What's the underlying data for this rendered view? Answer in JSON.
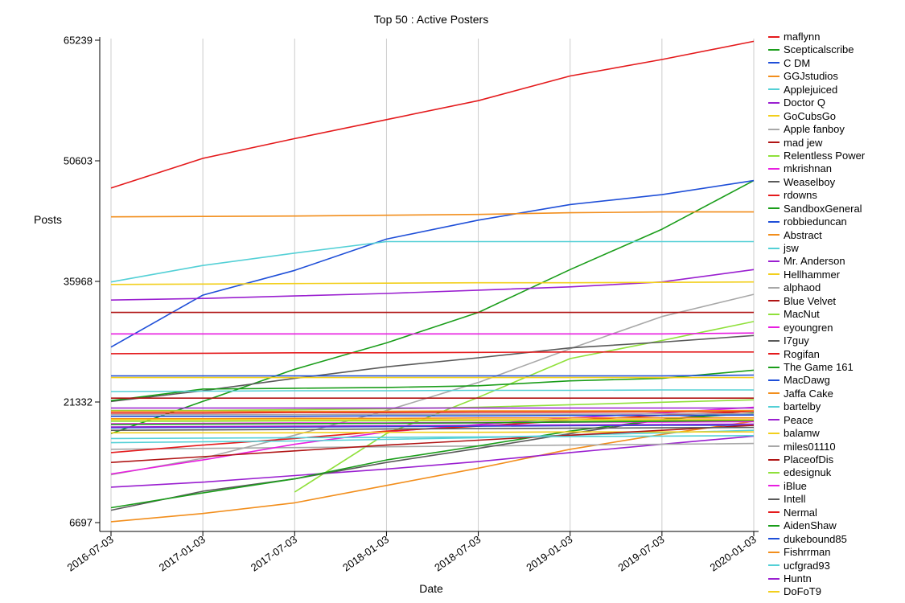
{
  "chart_data": {
    "type": "line",
    "title": "Top 50 : Active Posters",
    "xlabel": "Date",
    "ylabel": "Posts",
    "x": [
      "2016-07-03",
      "2017-01-03",
      "2017-07-03",
      "2018-01-03",
      "2018-07-03",
      "2019-01-03",
      "2019-07-03",
      "2020-01-03"
    ],
    "yticks": [
      6697,
      21332,
      35968,
      50603,
      65239
    ],
    "ylim": [
      6697,
      65239
    ],
    "grid": "vertical",
    "legend_position": "right",
    "series": [
      {
        "name": "maflynn",
        "color": "#e41a1c",
        "values": [
          47300,
          50900,
          53300,
          55600,
          57900,
          60900,
          62900,
          65100
        ]
      },
      {
        "name": "Scepticalscribe",
        "color": "#1a9d1a",
        "values": [
          17500,
          21400,
          25300,
          28500,
          32200,
          37400,
          42300,
          48200
        ]
      },
      {
        "name": "C DM",
        "color": "#1f4fd8",
        "values": [
          28000,
          34300,
          37300,
          41100,
          43400,
          45300,
          46500,
          48200
        ]
      },
      {
        "name": "GGJstudios",
        "color": "#f28e1c",
        "values": [
          43800,
          43850,
          43900,
          44000,
          44100,
          44300,
          44400,
          44400
        ]
      },
      {
        "name": "Applejuiced",
        "color": "#54d0d6",
        "values": [
          35900,
          37900,
          39400,
          40800,
          40800,
          40800,
          40800,
          40800
        ]
      },
      {
        "name": "Doctor Q",
        "color": "#9a1fd0",
        "values": [
          33700,
          33900,
          34200,
          34500,
          34900,
          35300,
          35900,
          37400
        ]
      },
      {
        "name": "GoCubsGo",
        "color": "#f2cf1c",
        "values": [
          35600,
          35650,
          35700,
          35750,
          35800,
          35800,
          35850,
          35900
        ]
      },
      {
        "name": "Apple fanboy",
        "color": "#a8a8a8",
        "values": [
          12500,
          14500,
          17300,
          20300,
          23700,
          27800,
          31700,
          34400
        ]
      },
      {
        "name": "mad jew",
        "color": "#b01414",
        "values": [
          32200,
          32200,
          32200,
          32200,
          32200,
          32200,
          32200,
          32200
        ]
      },
      {
        "name": "Relentless Power",
        "color": "#8fe03a",
        "values": [
          null,
          null,
          10400,
          17500,
          21900,
          26600,
          28800,
          31100
        ]
      },
      {
        "name": "mkrishnan",
        "color": "#e81ee0",
        "values": [
          29600,
          29600,
          29600,
          29600,
          29600,
          29600,
          29600,
          29700
        ]
      },
      {
        "name": "Weaselboy",
        "color": "#5a5a5a",
        "values": [
          21400,
          22700,
          24200,
          25600,
          26700,
          27900,
          28600,
          29400
        ]
      },
      {
        "name": "rdowns",
        "color": "#e41a1c",
        "values": [
          27200,
          27250,
          27300,
          27300,
          27350,
          27400,
          27400,
          27400
        ]
      },
      {
        "name": "SandboxGeneral",
        "color": "#1a9d1a",
        "values": [
          21500,
          22900,
          23000,
          23100,
          23300,
          23900,
          24200,
          25200
        ]
      },
      {
        "name": "robbieduncan",
        "color": "#1f4fd8",
        "values": [
          24500,
          24500,
          24500,
          24500,
          24500,
          24500,
          24500,
          24600
        ]
      },
      {
        "name": "Abstract",
        "color": "#f28e1c",
        "values": [
          6800,
          7800,
          9100,
          11200,
          13300,
          15600,
          17400,
          19000
        ]
      },
      {
        "name": "jsw",
        "color": "#54d0d6",
        "values": [
          22600,
          22650,
          22700,
          22700,
          22750,
          22750,
          22800,
          22800
        ]
      },
      {
        "name": "Mr. Anderson",
        "color": "#9a1fd0",
        "values": [
          11000,
          11600,
          12400,
          13200,
          14100,
          15200,
          16200,
          17200
        ]
      },
      {
        "name": "Hellhammer",
        "color": "#f2cf1c",
        "values": [
          24300,
          24300,
          24300,
          24300,
          24300,
          24300,
          24300,
          24300
        ]
      },
      {
        "name": "alphaod",
        "color": "#a8a8a8",
        "values": [
          15600,
          15700,
          15800,
          15900,
          16000,
          16100,
          16200,
          16300
        ]
      },
      {
        "name": "Blue Velvet",
        "color": "#b01414",
        "values": [
          21800,
          21800,
          21800,
          21800,
          21800,
          21800,
          21800,
          21800
        ]
      },
      {
        "name": "MacNut",
        "color": "#8fe03a",
        "values": [
          20300,
          20300,
          20400,
          20500,
          20700,
          21000,
          21300,
          21600
        ]
      },
      {
        "name": "eyoungren",
        "color": "#e81ee0",
        "values": [
          12600,
          14300,
          16200,
          17700,
          18600,
          19400,
          20000,
          20700
        ]
      },
      {
        "name": "I7guy",
        "color": "#5a5a5a",
        "values": [
          8200,
          10500,
          12000,
          14000,
          15700,
          17500,
          19200,
          20300
        ]
      },
      {
        "name": "Rogifan",
        "color": "#e41a1c",
        "values": [
          15200,
          16100,
          16900,
          17800,
          18400,
          19100,
          19700,
          20200
        ]
      },
      {
        "name": "The Game 161",
        "color": "#1a9d1a",
        "values": [
          8500,
          10300,
          12000,
          14300,
          16000,
          17800,
          19200,
          20000
        ]
      },
      {
        "name": "MacDawg",
        "color": "#1f4fd8",
        "values": [
          18200,
          18250,
          18300,
          18350,
          18400,
          18450,
          18500,
          18500
        ]
      },
      {
        "name": "Jaffa Cake",
        "color": "#f28e1c",
        "values": [
          19300,
          19300,
          19350,
          19350,
          19400,
          19400,
          19400,
          19400
        ]
      },
      {
        "name": "bartelby",
        "color": "#54d0d6",
        "values": [
          16400,
          16500,
          16600,
          16800,
          17000,
          17300,
          17600,
          17900
        ]
      },
      {
        "name": "Peace",
        "color": "#9a1fd0",
        "values": [
          20600,
          20600,
          20600,
          20600,
          20600,
          20600,
          20600,
          20600
        ]
      },
      {
        "name": "balamw",
        "color": "#f2cf1c",
        "values": [
          17600,
          17600,
          17600,
          17650,
          17650,
          17700,
          17700,
          17700
        ]
      },
      {
        "name": "miles01110",
        "color": "#a8a8a8",
        "values": [
          19800,
          19800,
          19800,
          19850,
          19850,
          19850,
          19900,
          19900
        ]
      },
      {
        "name": "PlaceofDis",
        "color": "#b01414",
        "values": [
          14000,
          14700,
          15400,
          16100,
          16700,
          17300,
          17900,
          18500
        ]
      },
      {
        "name": "edesignuk",
        "color": "#8fe03a",
        "values": [
          19000,
          19000,
          19050,
          19050,
          19100,
          19100,
          19100,
          19100
        ]
      },
      {
        "name": "iBlue",
        "color": "#e81ee0",
        "values": [
          18700,
          18750,
          18800,
          18800,
          18850,
          18900,
          18900,
          18950
        ]
      },
      {
        "name": "Intell",
        "color": "#5a5a5a",
        "values": [
          17900,
          17950,
          18000,
          18050,
          18100,
          18150,
          18200,
          18250
        ]
      },
      {
        "name": "Nermal",
        "color": "#e41a1c",
        "values": [
          20000,
          20000,
          20050,
          20050,
          20100,
          20100,
          20150,
          20200
        ]
      },
      {
        "name": "AidenShaw",
        "color": "#1a9d1a",
        "values": [
          18600,
          18650,
          18700,
          18750,
          18800,
          18900,
          19000,
          19100
        ]
      },
      {
        "name": "dukebound85",
        "color": "#1f4fd8",
        "values": [
          19600,
          19600,
          19600,
          19650,
          19650,
          19700,
          19700,
          19750
        ]
      },
      {
        "name": "Fishrrman",
        "color": "#f28e1c",
        "values": [
          20200,
          20200,
          20200,
          20200,
          20250,
          20250,
          20250,
          20300
        ]
      },
      {
        "name": "ucfgrad93",
        "color": "#54d0d6",
        "values": [
          16900,
          16950,
          17000,
          17050,
          17100,
          17150,
          17200,
          17250
        ]
      },
      {
        "name": "Huntn",
        "color": "#9a1fd0",
        "values": [
          18300,
          18350,
          18400,
          18450,
          18500,
          18550,
          18600,
          18650
        ]
      },
      {
        "name": "DoFoT9",
        "color": "#f2cf1c",
        "values": [
          19200,
          19200,
          19200,
          19200,
          19200,
          19200,
          19200,
          19200
        ]
      }
    ]
  }
}
